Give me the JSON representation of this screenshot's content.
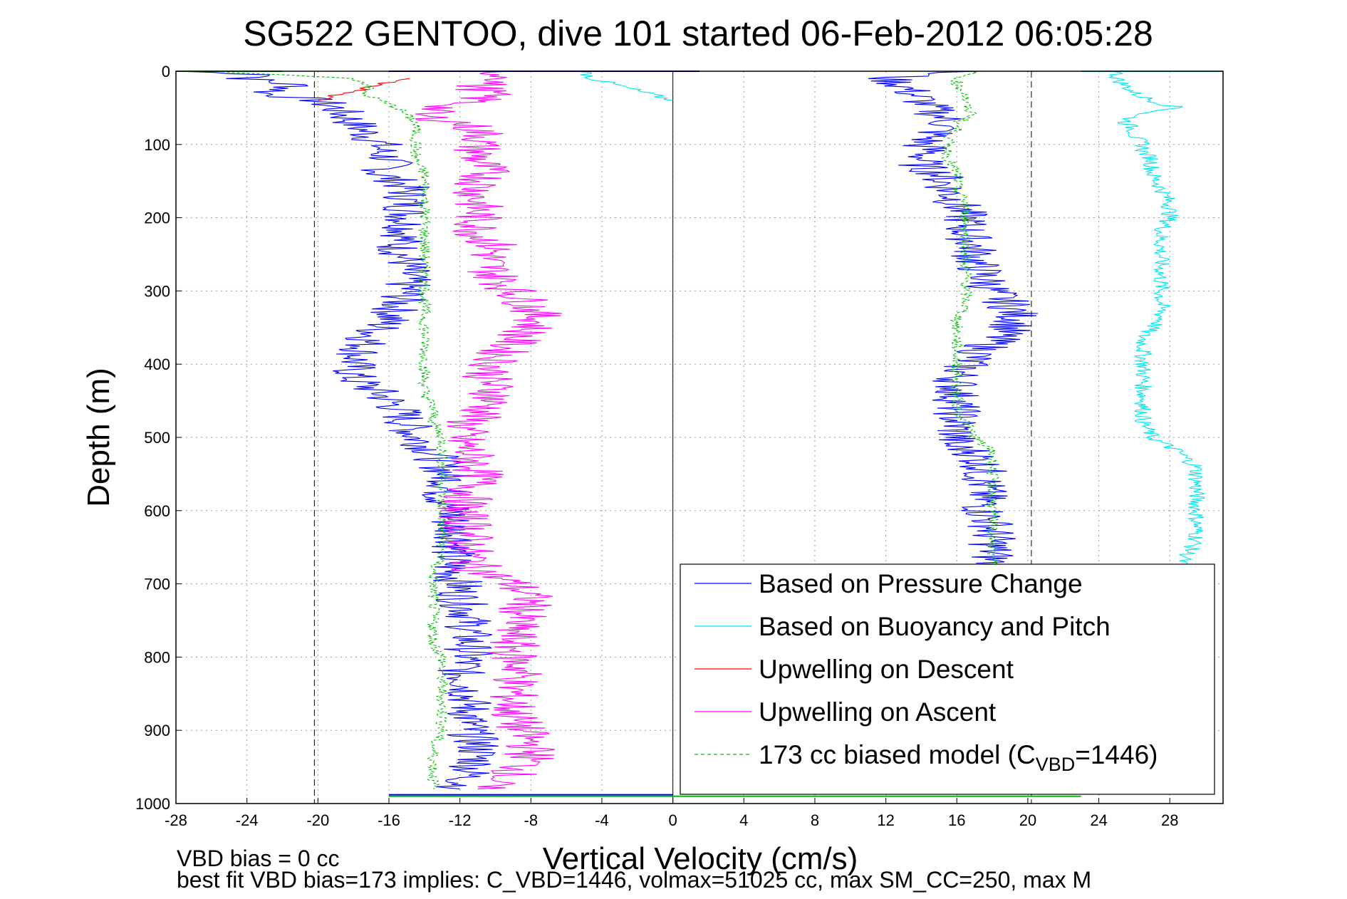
{
  "chart_data": {
    "type": "line",
    "title": "SG522 GENTOO, dive 101 started 06-Feb-2012 06:05:28",
    "xlabel": "Vertical Velocity (cm/s)",
    "ylabel": "Depth (m)",
    "xlim": [
      -28,
      31
    ],
    "ylim": [
      1000,
      0
    ],
    "xticks": [
      "-28",
      "-24",
      "-20",
      "-16",
      "-12",
      "-8",
      "-4",
      "0",
      "4",
      "8",
      "12",
      "16",
      "20",
      "24",
      "28"
    ],
    "yticks": [
      "0",
      "100",
      "200",
      "300",
      "400",
      "500",
      "600",
      "700",
      "800",
      "900",
      "1000"
    ],
    "grid": true,
    "legend_position": "bottom-right",
    "reference_lines": [
      -20.2,
      20.2
    ],
    "series": [
      {
        "name": "Based on Pressure Change",
        "color": "#0000ff",
        "style": "solid",
        "segments": [
          {
            "depth": [
              0,
              5,
              10,
              20,
              30,
              40,
              50,
              60,
              70,
              80,
              90,
              100,
              110,
              120,
              130,
              140,
              150,
              160,
              180,
              200,
              220,
              240,
              260,
              280,
              300,
              320,
              340,
              360,
              380,
              400,
              420,
              440,
              460,
              480,
              500,
              520,
              540,
              560,
              580,
              600,
              620,
              640,
              660,
              680,
              700,
              720,
              740,
              760,
              780,
              800,
              820,
              840,
              860,
              880,
              900,
              920,
              940,
              960,
              980
            ],
            "value": [
              -28,
              -22,
              -24,
              -21,
              -23,
              -20,
              -19,
              -18.5,
              -18,
              -17.5,
              -17,
              -16.5,
              -16.5,
              -16,
              -16,
              -16.5,
              -15.5,
              -15,
              -15,
              -15,
              -15,
              -15.5,
              -15,
              -15,
              -15,
              -15.5,
              -16,
              -17,
              -17.5,
              -18,
              -18,
              -16.5,
              -15.5,
              -15,
              -14.5,
              -13.5,
              -13,
              -12.5,
              -13,
              -12.5,
              -12.5,
              -12,
              -12.5,
              -12.5,
              -12,
              -12,
              -11.5,
              -11.5,
              -11.5,
              -11.5,
              -12,
              -11.5,
              -11.5,
              -11.5,
              -11.5,
              -11,
              -11,
              -11.5,
              -12
            ]
          },
          {
            "depth": [
              0,
              10,
              20,
              30,
              40,
              50,
              60,
              70,
              80,
              90,
              100,
              110,
              120,
              130,
              140,
              160,
              180,
              200,
              220,
              240,
              260,
              280,
              300,
              320,
              340,
              360,
              380,
              400,
              420,
              440,
              460,
              480,
              500,
              510,
              520,
              540,
              560,
              580,
              600,
              620,
              640,
              660,
              675
            ],
            "value": [
              16,
              12,
              13,
              13.5,
              14,
              14.5,
              15,
              15.5,
              15,
              14.5,
              14,
              14.5,
              14,
              14,
              15,
              15.5,
              16,
              16.5,
              16.5,
              17,
              17,
              17.5,
              18,
              19,
              19.5,
              18.5,
              17.5,
              16.5,
              16,
              16,
              16,
              16,
              16,
              15.5,
              17,
              17.5,
              17.5,
              17.5,
              17.5,
              18,
              18,
              18,
              18
            ]
          }
        ]
      },
      {
        "name": "Based on Buoyancy and Pitch",
        "color": "#00e5ee",
        "style": "solid",
        "segments": [
          {
            "depth": [
              0,
              10,
              20,
              30,
              40
            ],
            "value": [
              -5,
              -4.5,
              -3,
              -1.5,
              0
            ]
          },
          {
            "depth": [
              0,
              10,
              20,
              30,
              40,
              50,
              60,
              70,
              80,
              90,
              100,
              110,
              120,
              130,
              140,
              160,
              180,
              200,
              220,
              240,
              260,
              280,
              300,
              320,
              340,
              360,
              380,
              400,
              420,
              440,
              460,
              480,
              500,
              520,
              540,
              560,
              580,
              600,
              620,
              640,
              660,
              675
            ],
            "value": [
              25,
              25,
              25.5,
              26,
              27,
              28.5,
              26,
              25.5,
              26,
              26,
              26.5,
              26.5,
              27,
              27,
              27,
              27.5,
              28,
              28,
              27.5,
              27.5,
              27.5,
              27.5,
              27.5,
              27.5,
              27.5,
              26.5,
              26.5,
              26.5,
              26.5,
              26.5,
              26.5,
              26.5,
              27,
              28.5,
              29.5,
              29.5,
              29.5,
              29.5,
              29.5,
              29.5,
              29,
              28.5
            ]
          }
        ]
      },
      {
        "name": "Upwelling on Descent",
        "color": "#ff0000",
        "style": "solid",
        "segments": [
          {
            "depth": [
              10,
              15,
              20,
              25,
              30,
              35,
              40
            ],
            "value": [
              -15,
              -16,
              -17,
              -17.5,
              -18.5,
              -19.5,
              -20
            ]
          }
        ]
      },
      {
        "name": "Upwelling on Ascent",
        "color": "#ff00ff",
        "style": "solid",
        "segments": [
          {
            "depth": [
              0,
              10,
              20,
              30,
              40,
              50,
              60,
              70,
              80,
              90,
              100,
              120,
              140,
              160,
              180,
              200,
              220,
              240,
              260,
              280,
              300,
              320,
              340,
              360,
              380,
              400,
              420,
              440,
              460,
              480,
              500,
              520,
              540,
              560,
              580,
              600,
              620,
              640,
              660,
              680,
              700,
              720,
              740,
              760,
              780,
              800,
              820,
              840,
              860,
              880,
              900,
              920,
              940,
              960,
              980
            ],
            "value": [
              -10,
              -9,
              -11,
              -10.5,
              -11,
              -13,
              -14.5,
              -12,
              -11,
              -10.5,
              -11,
              -11,
              -10.5,
              -11,
              -11,
              -11,
              -11,
              -10,
              -10.5,
              -10,
              -9,
              -8,
              -7.5,
              -8.5,
              -9.5,
              -10,
              -10.5,
              -10,
              -10.5,
              -11.5,
              -12,
              -11.5,
              -11,
              -11,
              -11.5,
              -12,
              -11.5,
              -11.5,
              -11.5,
              -11,
              -9,
              -8,
              -8.5,
              -9,
              -9,
              -9,
              -8.5,
              -9,
              -9,
              -9,
              -8.5,
              -8,
              -8,
              -9,
              -11
            ]
          }
        ]
      },
      {
        "name": "173 cc biased model (C_VBD=1446)",
        "color": "#00c000",
        "style": "dashed",
        "segments": [
          {
            "depth": [
              0,
              10,
              20,
              30,
              40,
              50,
              60,
              70,
              80,
              90,
              100,
              120,
              140,
              160,
              180,
              200,
              220,
              240,
              260,
              280,
              300,
              320,
              340,
              360,
              380,
              400,
              420,
              440,
              460,
              480,
              500,
              520,
              540,
              560,
              580,
              600,
              620,
              640,
              660,
              680,
              700,
              720,
              740,
              760,
              780,
              800,
              820,
              840,
              860,
              880,
              900,
              920,
              940,
              960,
              980
            ],
            "value": [
              -26,
              -18,
              -17,
              -17.5,
              -16.5,
              -15.5,
              -15,
              -14.5,
              -14.5,
              -14.5,
              -14.5,
              -14.5,
              -14,
              -14,
              -14,
              -14,
              -14,
              -14,
              -14,
              -14,
              -14,
              -14,
              -14,
              -14,
              -14,
              -14,
              -14,
              -14,
              -13.5,
              -13.5,
              -13,
              -13,
              -13,
              -13,
              -13,
              -13,
              -13,
              -13,
              -13,
              -13.5,
              -13.5,
              -13.5,
              -13.5,
              -13.5,
              -13.5,
              -13,
              -13,
              -13,
              -13,
              -13,
              -13,
              -13.5,
              -13.5,
              -13.5,
              -13.5
            ]
          },
          {
            "depth": [
              0,
              10,
              20,
              30,
              40,
              50,
              60,
              70,
              80,
              90,
              100,
              120,
              140,
              160,
              180,
              200,
              220,
              240,
              260,
              280,
              300,
              320,
              340,
              360,
              380,
              400,
              420,
              440,
              460,
              480,
              500,
              520,
              540,
              560,
              580,
              600,
              620,
              640,
              660,
              675
            ],
            "value": [
              17,
              16,
              16,
              16.5,
              16.5,
              16.5,
              17,
              16,
              16,
              15.5,
              15.5,
              15.5,
              16,
              16,
              16.5,
              16.5,
              16.5,
              16.5,
              16.5,
              16.5,
              16.5,
              16.5,
              16,
              16,
              16,
              16,
              16,
              16,
              16,
              16.5,
              17,
              18,
              18,
              18,
              18,
              18,
              18,
              18,
              18,
              18
            ]
          }
        ]
      }
    ],
    "surface_lines": [
      {
        "color": "#0000ff",
        "depth": [
          0,
          0
        ],
        "value": [
          -16,
          1.5
        ]
      },
      {
        "color": "#00e5ee",
        "depth": [
          0,
          0
        ],
        "value": [
          23,
          31
        ]
      },
      {
        "color": "#00c000",
        "depth": [
          0,
          0
        ],
        "value": [
          -28,
          -22
        ]
      },
      {
        "color": "#00c000",
        "depth": [
          990,
          990
        ],
        "value": [
          -16,
          23
        ]
      },
      {
        "color": "#0000ff",
        "depth": [
          988,
          988
        ],
        "value": [
          -16,
          0
        ]
      }
    ]
  },
  "legend": {
    "items": [
      {
        "label": "Based on Pressure Change",
        "color": "#0000ff",
        "dashed": false
      },
      {
        "label": "Based on Buoyancy and Pitch",
        "color": "#00e5ee",
        "dashed": false
      },
      {
        "label": "Upwelling on Descent",
        "color": "#ff0000",
        "dashed": false
      },
      {
        "label": "Upwelling on Ascent",
        "color": "#ff00ff",
        "dashed": false
      }
    ],
    "model_item": {
      "prefix": "173 cc biased model (C",
      "subscript": "VBD",
      "suffix": "=1446)",
      "color": "#00c000",
      "dashed": true
    }
  },
  "footer": {
    "line1": "VBD bias = 0 cc",
    "line2": "best fit VBD bias=173 implies: C_VBD=1446, volmax=51025 cc, max SM_CC=250, max M"
  }
}
